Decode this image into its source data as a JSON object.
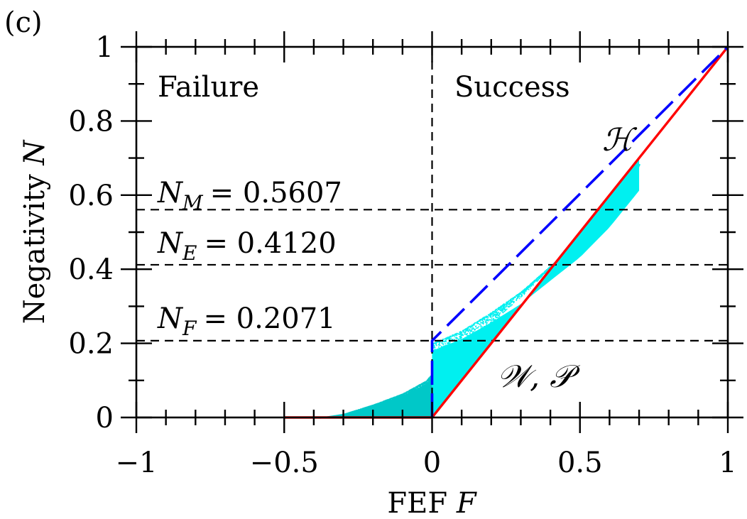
{
  "panel_label": "(c)",
  "chart_data": {
    "type": "scatter",
    "xlabel": "FEF",
    "xlabel_symbol": "F",
    "ylabel": "Negativity",
    "ylabel_symbol": "N",
    "xlim": [
      -1,
      1
    ],
    "ylim": [
      0,
      1
    ],
    "x_ticks": [
      -1,
      -0.5,
      0,
      0.5,
      1
    ],
    "x_tick_labels": [
      "−1",
      "−0.5",
      "0",
      "0.5",
      "1"
    ],
    "y_ticks": [
      0,
      0.2,
      0.4,
      0.6,
      0.8,
      1
    ],
    "y_tick_labels": [
      "0",
      "0.2",
      "0.4",
      "0.6",
      "0.8",
      "1"
    ],
    "minor_step": 0.1,
    "grid": false,
    "region_labels": [
      {
        "text": "Failure"
      },
      {
        "text": "Success"
      }
    ],
    "reference_lines": [
      {
        "name": "N",
        "subscript": "M",
        "value": 0.5607,
        "label": "= 0.5607"
      },
      {
        "name": "N",
        "subscript": "E",
        "value": 0.412,
        "label": "= 0.4120"
      },
      {
        "name": "N",
        "subscript": "F",
        "value": 0.2071,
        "label": "= 0.2071"
      }
    ],
    "vertical_reference": {
      "x": 0
    },
    "curves": [
      {
        "name": "𝒲, 𝒫",
        "color": "#ff0000",
        "style": "solid",
        "points": [
          [
            -0.5,
            0
          ],
          [
            0,
            0
          ],
          [
            1,
            1
          ]
        ]
      },
      {
        "name": "ℋ",
        "color": "#0000ff",
        "style": "dashed",
        "points": [
          [
            0,
            0
          ],
          [
            0,
            0.2071
          ],
          [
            1,
            1
          ]
        ]
      }
    ],
    "scatter_regions": [
      {
        "color": "#00c8c8",
        "description": "F < 0",
        "upper": [
          [
            -0.38,
            0
          ],
          [
            -0.3,
            0.01
          ],
          [
            -0.2,
            0.035
          ],
          [
            -0.1,
            0.065
          ],
          [
            -0.02,
            0.1
          ],
          [
            0,
            0.12
          ]
        ]
      },
      {
        "color": "#00f0f0",
        "description": "F >= 0",
        "upper": [
          [
            0,
            0.2
          ],
          [
            0.1,
            0.235
          ],
          [
            0.2,
            0.285
          ],
          [
            0.3,
            0.34
          ],
          [
            0.4,
            0.41
          ],
          [
            0.5,
            0.48
          ],
          [
            0.6,
            0.57
          ],
          [
            0.7,
            0.68
          ]
        ]
      }
    ],
    "colors": {
      "failure_scatter": "#00c8c8",
      "success_scatter": "#00f0f0",
      "werner_line": "#ff0000",
      "horodecki_line": "#0000ff"
    }
  }
}
